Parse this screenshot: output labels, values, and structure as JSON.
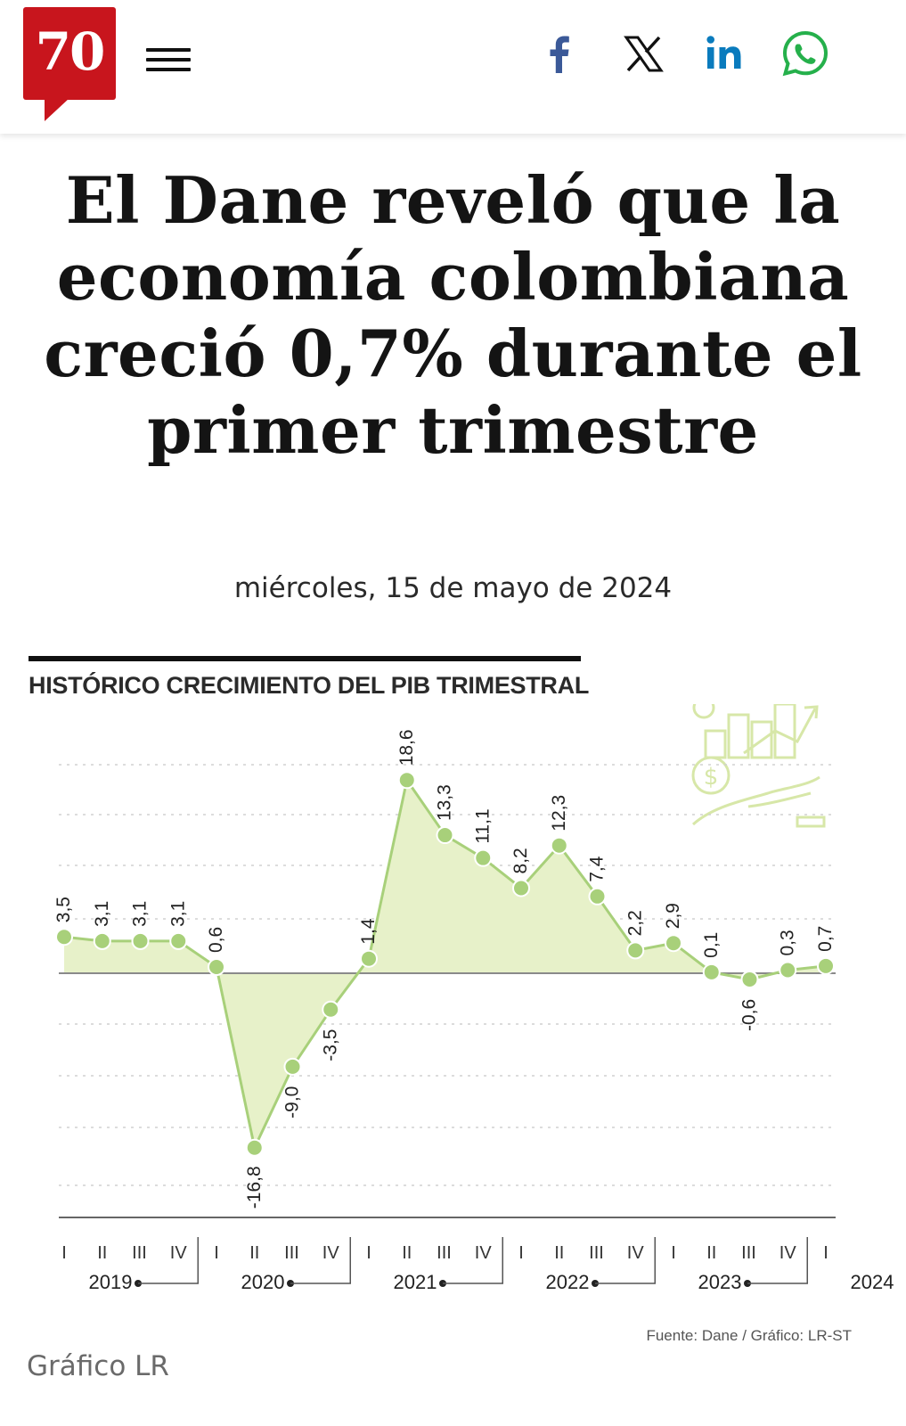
{
  "header": {
    "logo_text": "70",
    "menu_icon": "hamburger-menu-icon",
    "share_icons": [
      "facebook-icon",
      "x-icon",
      "linkedin-icon",
      "whatsapp-icon"
    ],
    "brand_color": "#c8151d"
  },
  "article": {
    "headline": "El Dane reveló que la economía colombiana creció 0,7% durante el primer trimestre",
    "date": "miércoles, 15 de mayo de 2024",
    "credit": "Gráfico LR"
  },
  "chart_data": {
    "type": "area",
    "title": "HISTÓRICO CRECIMIENTO DEL PIB TRIMESTRAL",
    "source": "Fuente: Dane / Gráfico: LR-ST",
    "fill_color": "#e7f1c9",
    "line_color": "#a8d07a",
    "x": [
      "I",
      "II",
      "III",
      "IV",
      "I",
      "II",
      "III",
      "IV",
      "I",
      "II",
      "III",
      "IV",
      "I",
      "II",
      "III",
      "IV",
      "I",
      "II",
      "III",
      "IV",
      "I"
    ],
    "years": [
      "2019",
      "2020",
      "2021",
      "2022",
      "2023",
      "2024"
    ],
    "values": [
      3.5,
      3.1,
      3.1,
      3.1,
      0.6,
      -16.8,
      -9.0,
      -3.5,
      1.4,
      18.6,
      13.3,
      11.1,
      8.2,
      12.3,
      7.4,
      2.2,
      2.9,
      0.1,
      -0.6,
      0.3,
      0.7
    ],
    "labels": [
      "3,5",
      "3,1",
      "3,1",
      "3,1",
      "0,6",
      "-16,8",
      "-9,0",
      "-3,5",
      "1,4",
      "18,6",
      "13,3",
      "11,1",
      "8,2",
      "12,3",
      "7,4",
      "2,2",
      "2,9",
      "0,1",
      "-0,6",
      "0,3",
      "0,7"
    ],
    "ylim": [
      -23,
      20
    ],
    "grid": true
  }
}
